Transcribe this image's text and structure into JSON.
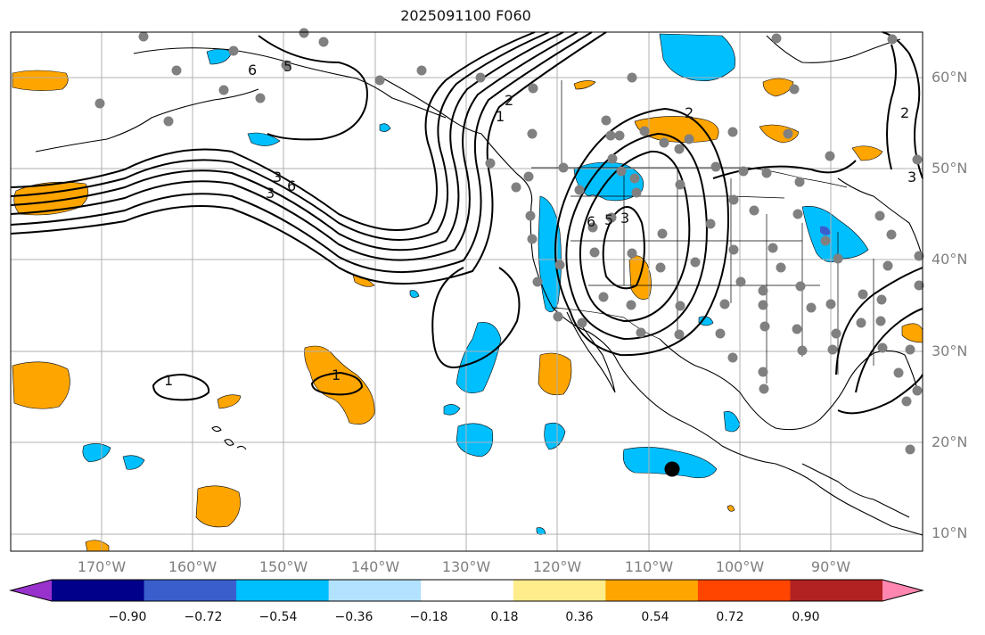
{
  "title": "2025091100 F060",
  "lat_labels": [
    "60°N",
    "50°N",
    "40°N",
    "30°N",
    "20°N",
    "10°N"
  ],
  "lon_labels": [
    "170°W",
    "160°W",
    "150°W",
    "140°W",
    "130°W",
    "120°W",
    "110°W",
    "100°W",
    "90°W"
  ],
  "contour_labels": [
    "6",
    "5",
    "3",
    "6",
    "3",
    "2",
    "1",
    "2",
    "6",
    "5",
    "3",
    "1",
    "1",
    "2",
    "3"
  ],
  "colorbar": {
    "colors": [
      "#9932cc",
      "#00008b",
      "#3a5fcd",
      "#00bfff",
      "#b2e2ff",
      "#ffffff",
      "#ffec8b",
      "#ffa500",
      "#ff4500",
      "#b22222",
      "#ff86b0"
    ],
    "tick_labels": [
      "−0.90",
      "−0.72",
      "−0.54",
      "−0.36",
      "−0.18",
      "0.18",
      "0.36",
      "0.54",
      "0.72",
      "0.90"
    ]
  },
  "colors": {
    "negative": "#00bfff",
    "positive": "#ffa500",
    "station": "#808080",
    "grid": "#b0b0b0"
  }
}
